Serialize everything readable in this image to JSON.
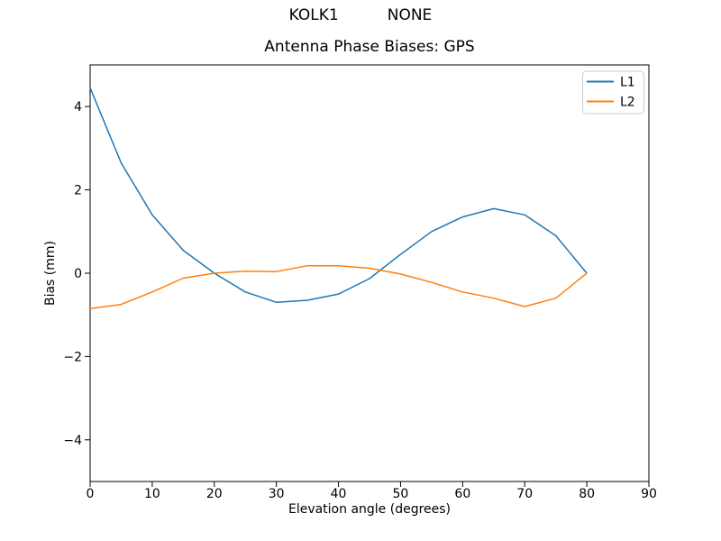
{
  "figure": {
    "suptitle": "KOLK1          NONE",
    "background_color": "#ffffff"
  },
  "chart_data": {
    "type": "line",
    "title": "Antenna Phase Biases: GPS",
    "xlabel": "Elevation angle (degrees)",
    "ylabel": "Bias (mm)",
    "xlim": [
      0,
      90
    ],
    "ylim": [
      -5,
      5
    ],
    "x_ticks": [
      0,
      10,
      20,
      30,
      40,
      50,
      60,
      70,
      80,
      90
    ],
    "y_ticks": [
      -4,
      -2,
      0,
      2,
      4
    ],
    "grid": false,
    "legend_position": "upper right",
    "x": [
      0,
      5,
      10,
      15,
      20,
      25,
      30,
      35,
      40,
      45,
      50,
      55,
      60,
      65,
      70,
      75,
      80
    ],
    "series": [
      {
        "name": "L1",
        "color": "#1f77b4",
        "values": [
          4.45,
          2.65,
          1.4,
          0.55,
          0.0,
          -0.45,
          -0.7,
          -0.65,
          -0.5,
          -0.13,
          0.45,
          1.0,
          1.35,
          1.55,
          1.4,
          0.9,
          0.0
        ]
      },
      {
        "name": "L2",
        "color": "#ff7f0e",
        "values": [
          -0.85,
          -0.75,
          -0.45,
          -0.12,
          0.0,
          0.05,
          0.04,
          0.18,
          0.18,
          0.12,
          -0.02,
          -0.22,
          -0.45,
          -0.6,
          -0.8,
          -0.6,
          0.0
        ]
      }
    ]
  }
}
